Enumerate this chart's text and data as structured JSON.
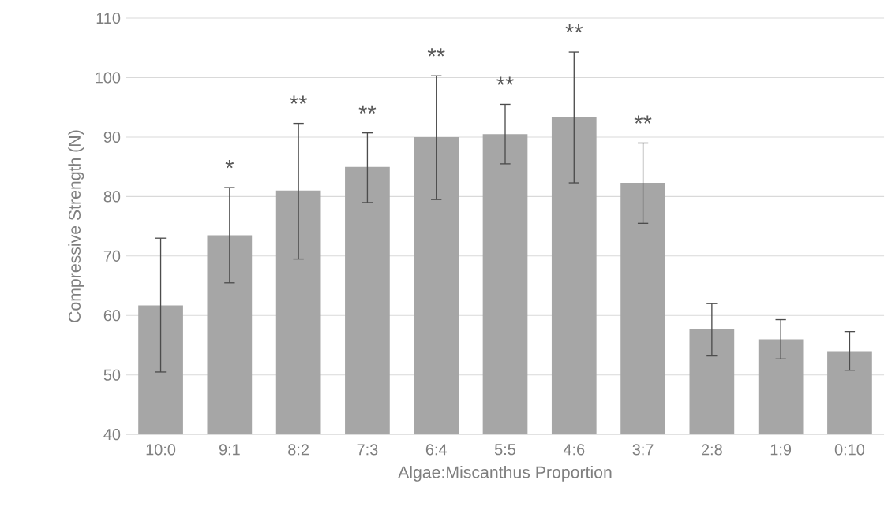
{
  "chart_data": {
    "type": "bar",
    "xlabel": "Algae:Miscanthus Proportion",
    "ylabel": "Compressive Strength (N)",
    "categories": [
      "10:0",
      "9:1",
      "8:2",
      "7:3",
      "6:4",
      "5:5",
      "4:6",
      "3:7",
      "2:8",
      "1:9",
      "0:10"
    ],
    "values": [
      61.7,
      73.5,
      81,
      85,
      90,
      90.5,
      93.3,
      82.3,
      57.7,
      56,
      54
    ],
    "errors": [
      [
        50.5,
        73
      ],
      [
        65.5,
        81.5
      ],
      [
        69.5,
        92.3
      ],
      [
        79,
        90.7
      ],
      [
        79.5,
        100.3
      ],
      [
        85.5,
        95.5
      ],
      [
        82.3,
        104.3
      ],
      [
        75.5,
        89
      ],
      [
        53.2,
        62
      ],
      [
        52.7,
        59.3
      ],
      [
        50.8,
        57.3
      ]
    ],
    "color": "#a6a6a6",
    "ylim": [
      40,
      110
    ],
    "yticks": [
      40,
      50,
      60,
      70,
      80,
      90,
      100,
      110
    ],
    "grid": "y",
    "annotations": [
      {
        "text": "*",
        "x": "9:1",
        "y": 81.5
      },
      {
        "text": "**",
        "x": "8:2",
        "y": 92.3
      },
      {
        "text": "**",
        "x": "7:3",
        "y": 90.7
      },
      {
        "text": "**",
        "x": "6:4",
        "y": 100.3
      },
      {
        "text": "**",
        "x": "5:5",
        "y": 95.5
      },
      {
        "text": "**",
        "x": "4:6",
        "y": 104.3
      },
      {
        "text": "**",
        "x": "3:7",
        "y": 89
      }
    ]
  }
}
